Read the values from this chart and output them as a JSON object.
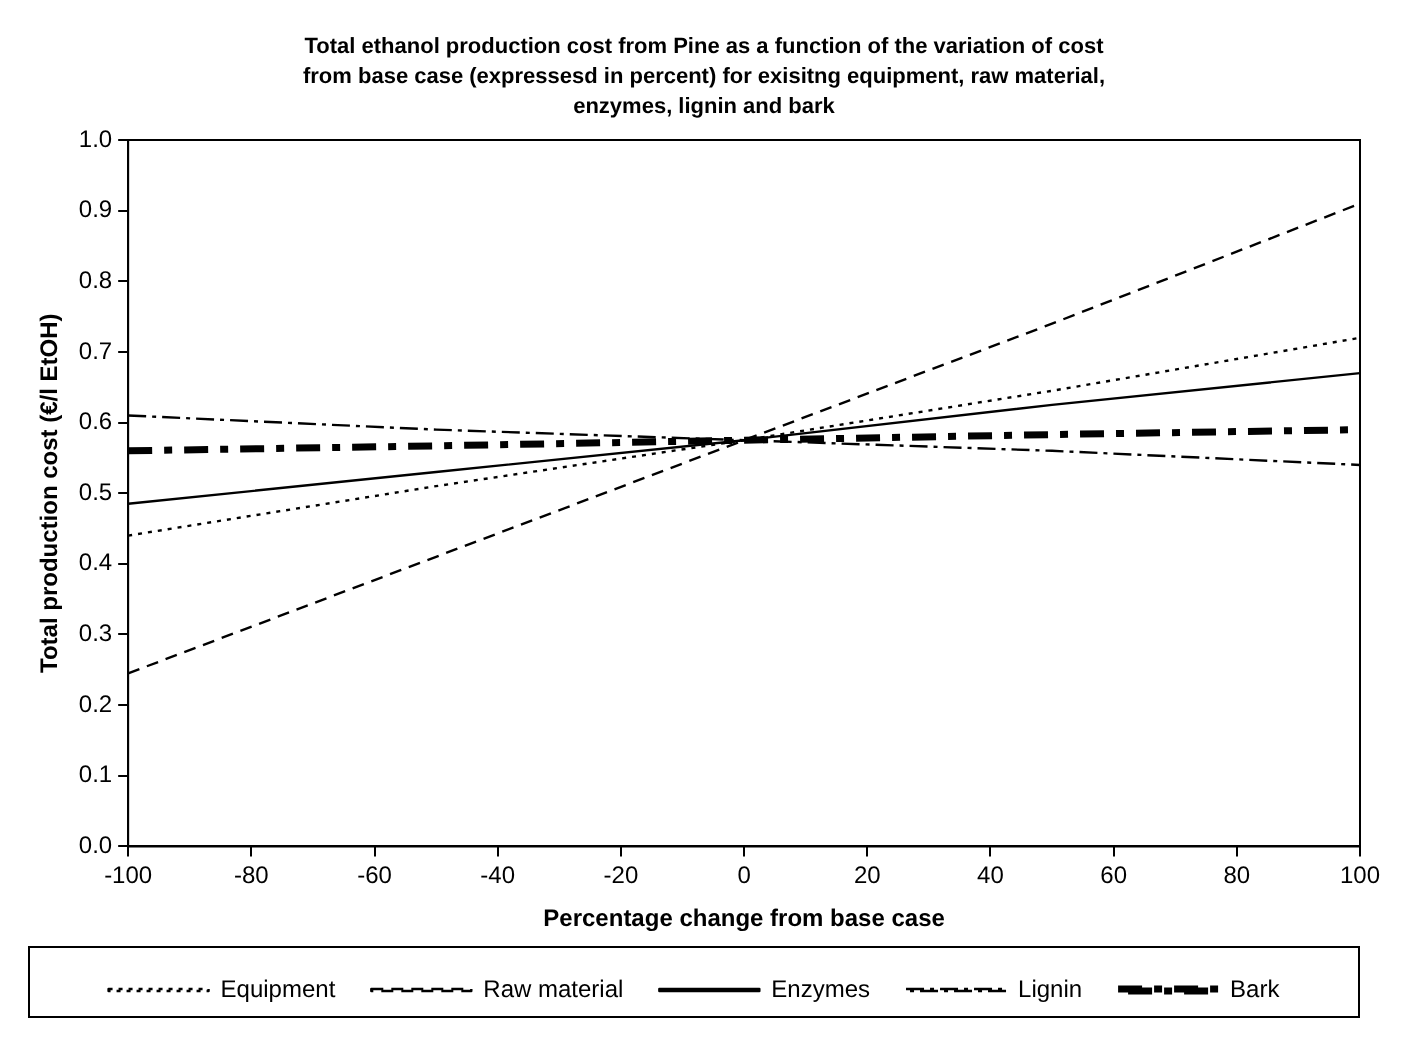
{
  "chart_data": {
    "type": "line",
    "title": "Total ethanol production cost from Pine as a function of the variation of cost from base case (expressesd in percent) for exisitng equipment, raw material, enzymes, lignin and bark",
    "xlabel": "Percentage change from base case",
    "ylabel": "Total production cost (€/l EtOH)",
    "x": [
      -100,
      -50,
      0,
      50,
      100
    ],
    "series": [
      {
        "name": "Equipment",
        "color": "#000000",
        "line_style": "dotted",
        "values": [
          0.44,
          0.51,
          0.575,
          0.645,
          0.72
        ]
      },
      {
        "name": "Raw material",
        "color": "#000000",
        "line_style": "dashed",
        "values": [
          0.245,
          0.41,
          0.575,
          0.74,
          0.91
        ]
      },
      {
        "name": "Enzymes",
        "color": "#000000",
        "line_style": "solid",
        "values": [
          0.485,
          0.53,
          0.575,
          0.625,
          0.67
        ]
      },
      {
        "name": "Lignin",
        "color": "#000000",
        "line_style": "dashdot",
        "values": [
          0.61,
          0.59,
          0.575,
          0.56,
          0.54
        ]
      },
      {
        "name": "Bark",
        "color": "#000000",
        "line_style": "dashdot",
        "values": [
          0.56,
          0.567,
          0.575,
          0.583,
          0.59
        ]
      }
    ],
    "xlim": [
      -100,
      100
    ],
    "xticks": [
      -100,
      -80,
      -60,
      -40,
      -20,
      0,
      20,
      40,
      60,
      80,
      100
    ],
    "ylim": [
      0,
      1
    ],
    "yticks": [
      {
        "value": 0,
        "label": "0.0"
      },
      {
        "value": 0.1,
        "label": "0.1"
      },
      {
        "value": 0.2,
        "label": "0.2"
      },
      {
        "value": 0.3,
        "label": "0.3"
      },
      {
        "value": 0.4,
        "label": "0.4"
      },
      {
        "value": 0.5,
        "label": "0.5"
      },
      {
        "value": 0.6,
        "label": "0.6"
      },
      {
        "value": 0.7,
        "label": "0.7"
      },
      {
        "value": 0.8,
        "label": "0.8"
      },
      {
        "value": 0.9,
        "label": "0.9"
      },
      {
        "value": 1,
        "label": "1.0"
      }
    ],
    "grid": false,
    "legend": "bottom",
    "marker": "none"
  }
}
